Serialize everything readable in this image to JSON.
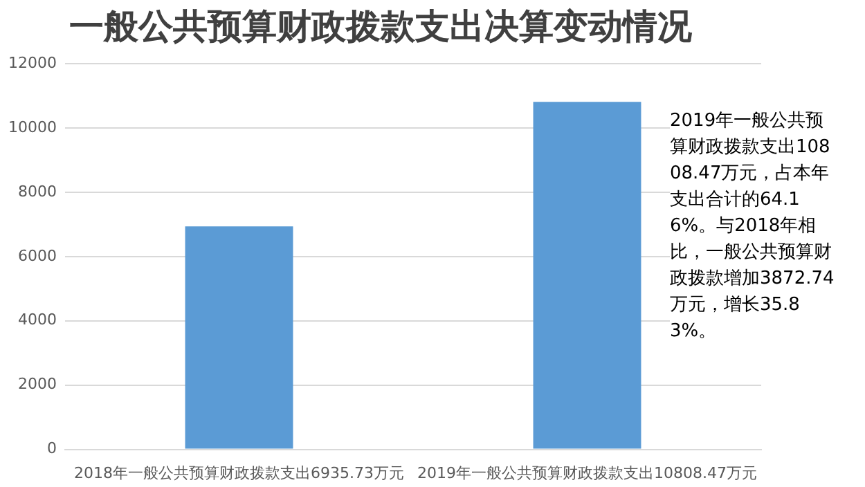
{
  "chart_data": {
    "type": "bar",
    "title": "一般公共预算财政拨款支出决算变动情况",
    "categories": [
      "2018年一般公共预算财政拨款支出6935.73万元",
      "2019年一般公共预算财政拨款支出10808.47万元"
    ],
    "values": [
      6935.73,
      10808.47
    ],
    "color": "#5b9bd5",
    "ylim": [
      0,
      12000
    ],
    "yticks": [
      0,
      2000,
      4000,
      6000,
      8000,
      10000,
      12000
    ],
    "grid": "y",
    "annotations": [
      "2019年一般公共预算财政拨款支出10808.47万元，占本年支出合计的64.16%。与2018年相比，一般公共预算财政拨款增加3872.74万元，增长35.83%。"
    ]
  }
}
